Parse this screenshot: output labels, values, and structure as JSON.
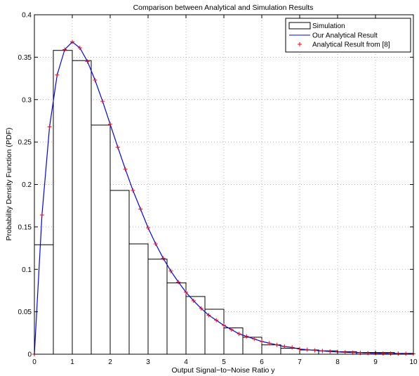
{
  "chart_data": {
    "type": "bar",
    "title": "Comparison between Analytical and Simulation Results",
    "xlabel": "Output Signal−to−Noise Ratio y",
    "ylabel": "Probability Density Function (PDF)",
    "xlim": [
      0,
      10
    ],
    "ylim": [
      0,
      0.4
    ],
    "grid": true,
    "legend_position": "top-right",
    "x_ticks": [
      "0",
      "1",
      "2",
      "3",
      "4",
      "5",
      "6",
      "7",
      "8",
      "9",
      "10"
    ],
    "y_ticks": [
      "0",
      "0.05",
      "0.1",
      "0.15",
      "0.2",
      "0.25",
      "0.3",
      "0.35",
      "0.4"
    ],
    "series": [
      {
        "name": "Simulation",
        "kind": "histogram",
        "color": "#000000",
        "bin_width": 0.5,
        "bin_centers": [
          0.25,
          0.75,
          1.25,
          1.75,
          2.25,
          2.75,
          3.25,
          3.75,
          4.25,
          4.75,
          5.25,
          5.75,
          6.25,
          6.75,
          7.25,
          7.75,
          8.25,
          8.75,
          9.25,
          9.75
        ],
        "values": [
          0.129,
          0.358,
          0.346,
          0.27,
          0.193,
          0.13,
          0.112,
          0.084,
          0.068,
          0.053,
          0.031,
          0.02,
          0.011,
          0.007,
          0.005,
          0.004,
          0.003,
          0.002,
          0.002,
          0.001
        ]
      },
      {
        "name": "Our Analytical Result",
        "kind": "line",
        "color": "#0000ff",
        "x": [
          0,
          0.2,
          0.4,
          0.6,
          0.8,
          1.0,
          1.2,
          1.4,
          1.6,
          1.8,
          2.0,
          2.2,
          2.4,
          2.6,
          2.8,
          3.0,
          3.2,
          3.4,
          3.6,
          3.8,
          4.0,
          4.2,
          4.4,
          4.6,
          4.8,
          5.0,
          5.2,
          5.4,
          5.6,
          5.8,
          6.0,
          6.2,
          6.4,
          6.6,
          6.8,
          7.0,
          7.2,
          7.4,
          7.6,
          7.8,
          8.0,
          8.2,
          8.4,
          8.6,
          8.8,
          9.0,
          9.2,
          9.4,
          9.6,
          9.8,
          10.0
        ],
        "y": [
          0,
          0.164,
          0.268,
          0.329,
          0.359,
          0.368,
          0.361,
          0.345,
          0.323,
          0.298,
          0.271,
          0.244,
          0.218,
          0.193,
          0.171,
          0.149,
          0.13,
          0.113,
          0.098,
          0.085,
          0.073,
          0.063,
          0.054,
          0.046,
          0.04,
          0.034,
          0.029,
          0.024,
          0.021,
          0.018,
          0.015,
          0.013,
          0.011,
          0.009,
          0.008,
          0.006,
          0.0054,
          0.0045,
          0.0038,
          0.0032,
          0.0027,
          0.0023,
          0.0019,
          0.0016,
          0.0013,
          0.0011,
          0.0009,
          0.0008,
          0.0007,
          0.0006,
          0.0005
        ]
      },
      {
        "name": "Analytical Result from [8]",
        "kind": "markers",
        "marker": "+",
        "color": "#ff0000",
        "x": [
          0,
          0.2,
          0.4,
          0.6,
          0.8,
          1.0,
          1.2,
          1.4,
          1.6,
          1.8,
          2.0,
          2.2,
          2.4,
          2.6,
          2.8,
          3.0,
          3.2,
          3.4,
          3.6,
          3.8,
          4.0,
          4.2,
          4.4,
          4.6,
          4.8,
          5.0,
          5.2,
          5.4,
          5.6,
          5.8,
          6.0,
          6.2,
          6.4,
          6.6,
          6.8,
          7.0,
          7.2,
          7.4,
          7.6,
          7.8,
          8.0,
          8.2,
          8.4,
          8.6,
          8.8,
          9.0,
          9.2,
          9.4,
          9.6,
          9.8,
          10.0
        ],
        "y": [
          0,
          0.164,
          0.268,
          0.329,
          0.359,
          0.368,
          0.361,
          0.345,
          0.323,
          0.298,
          0.271,
          0.244,
          0.218,
          0.193,
          0.171,
          0.149,
          0.13,
          0.113,
          0.098,
          0.085,
          0.073,
          0.063,
          0.054,
          0.046,
          0.04,
          0.034,
          0.029,
          0.024,
          0.021,
          0.018,
          0.015,
          0.013,
          0.011,
          0.009,
          0.008,
          0.006,
          0.0054,
          0.0045,
          0.0038,
          0.0032,
          0.0027,
          0.0023,
          0.0019,
          0.0016,
          0.0013,
          0.0011,
          0.0009,
          0.0008,
          0.0007,
          0.0006,
          0.0005
        ]
      }
    ]
  }
}
